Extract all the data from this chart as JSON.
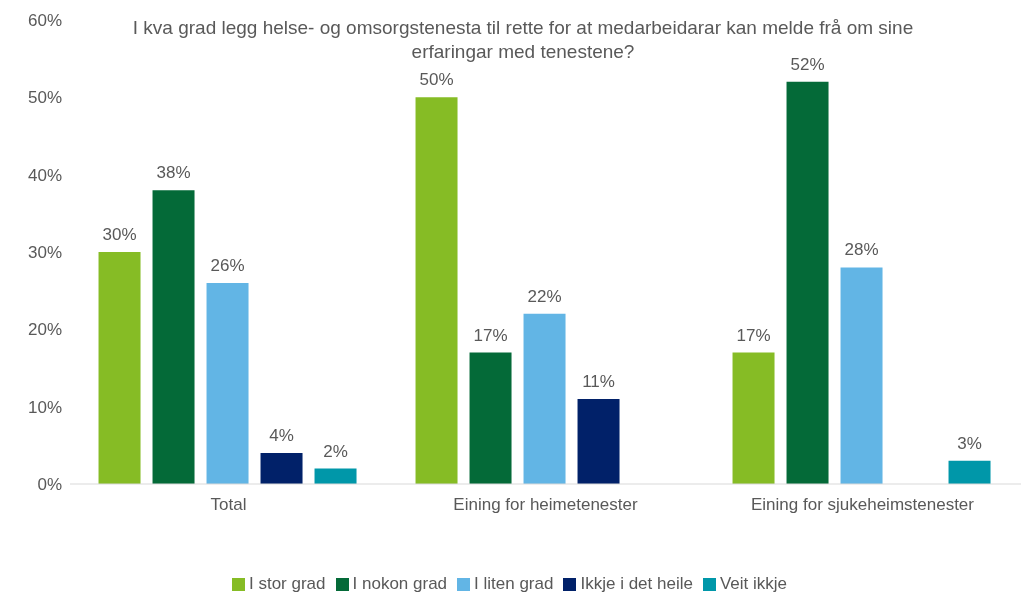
{
  "chart_data": {
    "type": "bar",
    "title": "I kva grad legg helse- og omsorgstenesta til rette for at medarbeidarar kan melde frå om sine erfaringar med tenestene?",
    "categories": [
      "Total",
      "Eining for heimetenester",
      "Eining for sjukeheimstenester"
    ],
    "series": [
      {
        "name": "I stor grad",
        "color": "#86bc25",
        "values": [
          30,
          50,
          17
        ],
        "value_labels": [
          "30%",
          "50%",
          "17%"
        ]
      },
      {
        "name": "I nokon grad",
        "color": "#046a38",
        "values": [
          38,
          17,
          52
        ],
        "value_labels": [
          "38%",
          "17%",
          "52%"
        ]
      },
      {
        "name": "I liten grad",
        "color": "#62b5e5",
        "values": [
          26,
          22,
          28
        ],
        "value_labels": [
          "26%",
          "22%",
          "28%"
        ]
      },
      {
        "name": "Ikkje i det heile",
        "color": "#012169",
        "values": [
          4,
          11,
          null
        ],
        "value_labels": [
          "4%",
          "11%",
          null
        ]
      },
      {
        "name": "Veit ikkje",
        "color": "#0097a9",
        "values": [
          2,
          null,
          3
        ],
        "value_labels": [
          "2%",
          null,
          "3%"
        ]
      }
    ],
    "ylim": [
      0,
      60
    ],
    "yticks": [
      {
        "value": 0,
        "label": "0%"
      },
      {
        "value": 10,
        "label": "10%"
      },
      {
        "value": 20,
        "label": "20%"
      },
      {
        "value": 30,
        "label": "30%"
      },
      {
        "value": 40,
        "label": "40%"
      },
      {
        "value": 50,
        "label": "50%"
      },
      {
        "value": 60,
        "label": "60%"
      }
    ],
    "grid": false,
    "legend": "bottom"
  }
}
